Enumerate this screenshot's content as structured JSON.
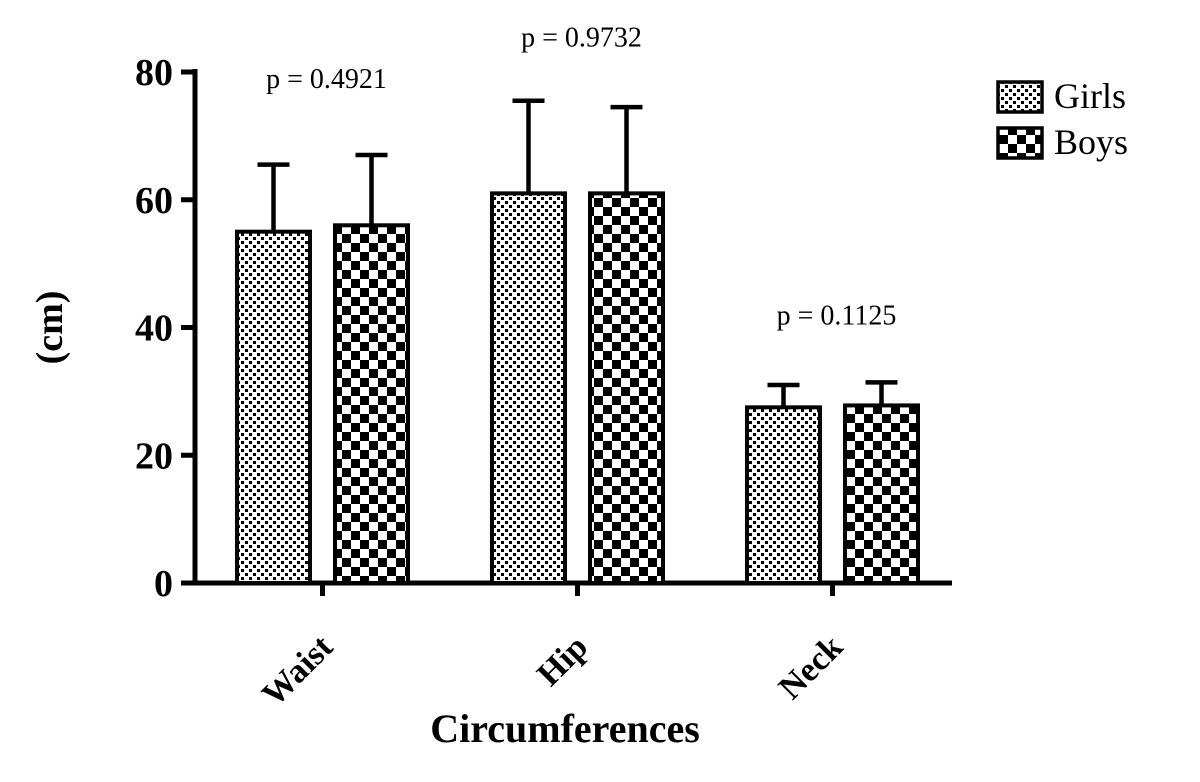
{
  "chart_data": {
    "type": "bar",
    "title": "",
    "xlabel": "Circumferences",
    "ylabel": "(cm)",
    "ylim": [
      0,
      80
    ],
    "yticks": [
      0,
      20,
      40,
      60,
      80
    ],
    "categories": [
      "Waist",
      "Hip",
      "Neck"
    ],
    "series": [
      {
        "name": "Girls",
        "pattern": "stipple-dots",
        "values": [
          55,
          61,
          27.5
        ],
        "errors": [
          10.5,
          14.5,
          3.5
        ]
      },
      {
        "name": "Boys",
        "pattern": "checkerboard",
        "values": [
          56,
          61,
          27.8
        ],
        "errors": [
          11,
          13.5,
          3.6
        ]
      }
    ],
    "annotations": [
      {
        "label": "p = 0.4921",
        "category": "Waist",
        "y": 77.5
      },
      {
        "label": "p = 0.9732",
        "category": "Hip",
        "y": 84
      },
      {
        "label": "p = 0.1125",
        "category": "Neck",
        "y": 40.5
      }
    ],
    "legend": {
      "position": "top-right",
      "entries": [
        {
          "label": "Girls",
          "pattern": "stipple-dots"
        },
        {
          "label": "Boys",
          "pattern": "checkerboard"
        }
      ]
    },
    "layout_hints": {
      "grid": false,
      "bar_fill": "white-with-black-pattern",
      "error_bars": "upper-only-with-caps"
    },
    "colors": {
      "axis": "#000000",
      "text": "#000000",
      "pattern": "#000000",
      "bar_fill": "#ffffff",
      "background": "#ffffff"
    }
  }
}
